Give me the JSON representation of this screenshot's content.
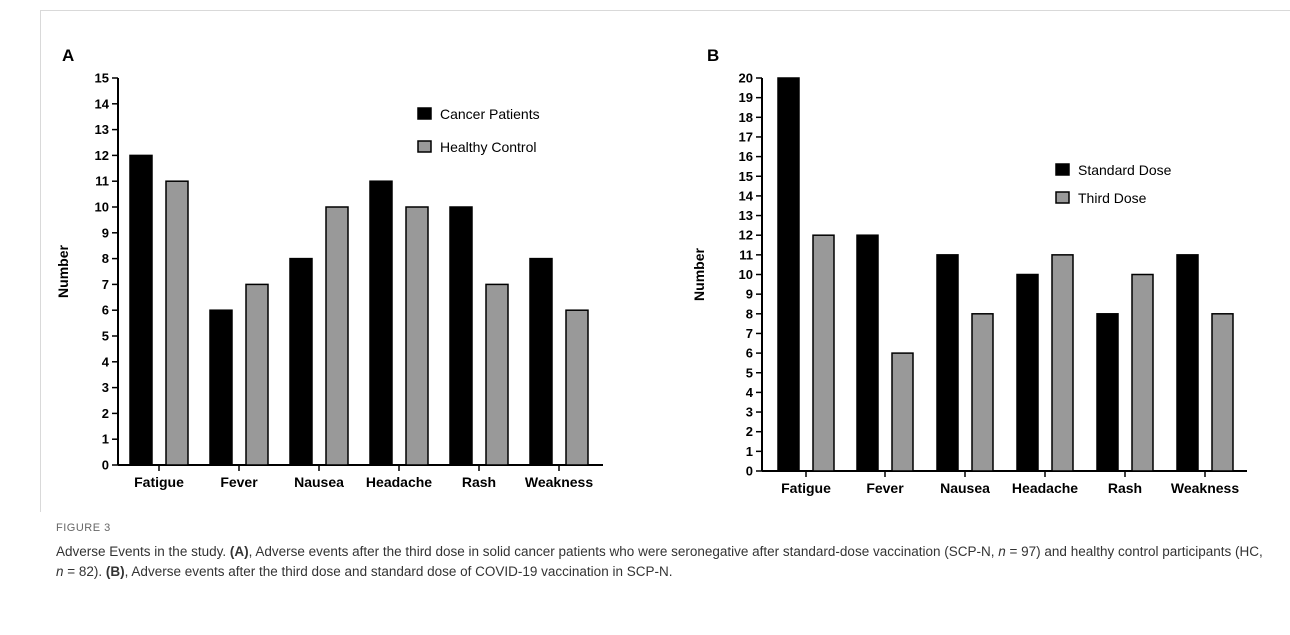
{
  "panels": [
    {
      "letter": "A",
      "legend": [
        "Cancer Patients",
        "Healthy Control"
      ]
    },
    {
      "letter": "B",
      "legend": [
        "Standard Dose",
        "Third Dose"
      ]
    }
  ],
  "caption": {
    "label": "FIGURE 3",
    "text1": "Adverse Events in the study. ",
    "bold_a": "(A)",
    "text2": ", Adverse events after the third dose in solid cancer patients who were seronegative after standard-dose vaccination (SCP-N, ",
    "n1": "n",
    "text3": " = 97) and healthy control participants (HC, ",
    "n2": "n",
    "text4": " = 82). ",
    "bold_b": "(B)",
    "text5": ", Adverse events after the third dose and standard dose of COVID-19 vaccination in SCP-N."
  },
  "colors": {
    "series1": "#000000",
    "series2": "#999999",
    "axis": "#000000"
  },
  "chart_data": [
    {
      "type": "bar",
      "categories": [
        "Fatigue",
        "Fever",
        "Nausea",
        "Headache",
        "Rash",
        "Weakness"
      ],
      "series": [
        {
          "name": "Cancer Patients",
          "values": [
            12,
            6,
            8,
            11,
            10,
            8
          ]
        },
        {
          "name": "Healthy Control",
          "values": [
            11,
            7,
            10,
            10,
            7,
            6
          ]
        }
      ],
      "title": "",
      "xlabel": "",
      "ylabel": "Number",
      "ylim": [
        0,
        15
      ],
      "yticks": [
        "0",
        "1",
        "2",
        "3",
        "4",
        "5",
        "6",
        "7",
        "8",
        "9",
        "10",
        "11",
        "12",
        "13",
        "14",
        "15"
      ],
      "legend": "top-right",
      "grid": false
    },
    {
      "type": "bar",
      "categories": [
        "Fatigue",
        "Fever",
        "Nausea",
        "Headache",
        "Rash",
        "Weakness"
      ],
      "series": [
        {
          "name": "Standard Dose",
          "values": [
            20,
            12,
            11,
            10,
            8,
            11
          ]
        },
        {
          "name": "Third Dose",
          "values": [
            12,
            6,
            8,
            11,
            10,
            8
          ]
        }
      ],
      "title": "",
      "xlabel": "",
      "ylabel": "Number",
      "ylim": [
        0,
        20
      ],
      "yticks": [
        "0",
        "1",
        "2",
        "3",
        "4",
        "5",
        "6",
        "7",
        "8",
        "9",
        "10",
        "11",
        "12",
        "13",
        "14",
        "15",
        "16",
        "17",
        "18",
        "19",
        "20"
      ],
      "legend": "top-right",
      "grid": false
    }
  ]
}
